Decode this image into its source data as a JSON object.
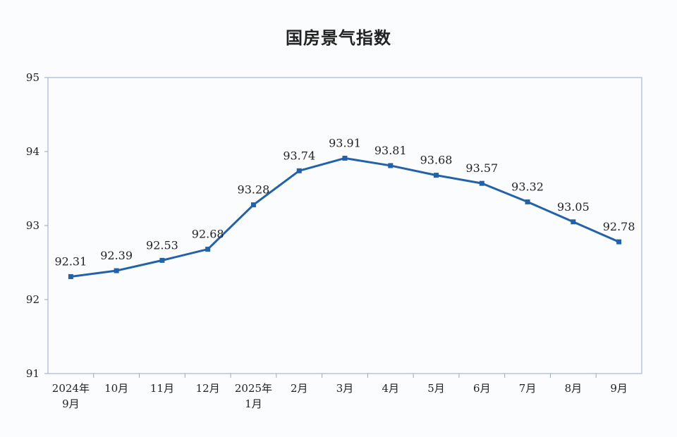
{
  "chart_data": {
    "type": "line",
    "title": "国房景气指数",
    "xlabel": "",
    "ylabel": "",
    "ylim": [
      91,
      95
    ],
    "yticks": [
      "91",
      "92",
      "93",
      "94",
      "95"
    ],
    "categories": [
      [
        "2024年",
        "9月"
      ],
      [
        "10月"
      ],
      [
        "11月"
      ],
      [
        "12月"
      ],
      [
        "2025年",
        "1月"
      ],
      [
        "2月"
      ],
      [
        "3月"
      ],
      [
        "4月"
      ],
      [
        "5月"
      ],
      [
        "6月"
      ],
      [
        "7月"
      ],
      [
        "8月"
      ],
      [
        "9月"
      ]
    ],
    "values": [
      92.31,
      92.39,
      92.53,
      92.68,
      93.28,
      93.74,
      93.91,
      93.81,
      93.68,
      93.57,
      93.32,
      93.05,
      92.78
    ],
    "value_labels": [
      "92.31",
      "92.39",
      "92.53",
      "92.68",
      "93.28",
      "93.74",
      "93.91",
      "93.81",
      "93.68",
      "93.57",
      "93.32",
      "93.05",
      "92.78"
    ],
    "grid": false,
    "legend": "none",
    "colors": {
      "line": "#2362a8",
      "axis": "#9aa8c4",
      "text": "#222222"
    }
  }
}
